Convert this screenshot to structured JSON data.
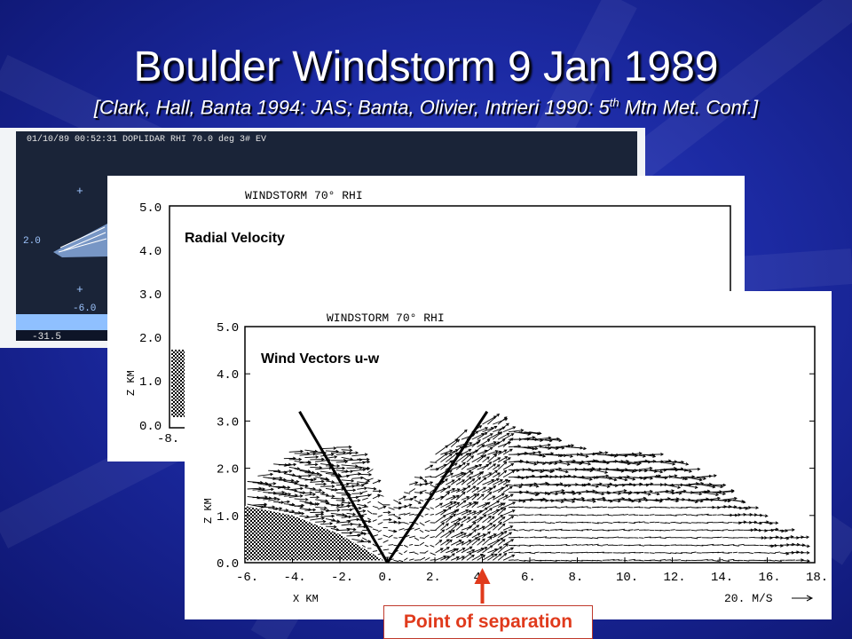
{
  "slide": {
    "title": "Boulder Windstorm 9 Jan 1989",
    "subtitle_main": "[Clark, Hall, Banta 1994: JAS;  Banta, Olivier, Intrieri 1990: 5",
    "subtitle_sup": "th",
    "subtitle_end": " Mtn Met. Conf.]",
    "annotation": "Point of separation",
    "annotation_color": "#e03a1c"
  },
  "panel_doplidar": {
    "header": "01/10/89 00:52:31  DOPLIDAR RHI  70.0 deg  3# EV",
    "label_2": "2.0",
    "label_m6": "-6.0",
    "colorbar_label": "-31.5"
  },
  "panel_radial": {
    "header": "WINDSTORM 70° RHI",
    "label": "Radial Velocity",
    "y_axis_label": "Z KM",
    "y_ticks": [
      "5.0",
      "4.0",
      "3.0",
      "2.0",
      "1.0",
      "0.0"
    ],
    "x_tick_first": "-8."
  },
  "chart_data": {
    "type": "vector-field",
    "title": "WINDSTORM 70° RHI",
    "label": "Wind Vectors  u-w",
    "xlabel": "X KM",
    "ylabel": "Z KM",
    "xlim": [
      -6,
      18
    ],
    "ylim": [
      0,
      5
    ],
    "x_ticks": [
      "-6.",
      "-4.",
      "-2.",
      "0.",
      "2.",
      "4.",
      "6.",
      "8.",
      "10.",
      "12.",
      "14.",
      "16.",
      "18."
    ],
    "y_ticks": [
      "0.0",
      "1.0",
      "2.0",
      "3.0",
      "4.0",
      "5.0"
    ],
    "scale_label": "20. M/S",
    "separation_lines": [
      {
        "x": [
          0.0,
          -3.7
        ],
        "z": [
          0.0,
          3.2
        ]
      },
      {
        "x": [
          0.0,
          4.2
        ],
        "z": [
          0.0,
          3.2
        ]
      }
    ],
    "separation_point_x": 4.0,
    "vector_envelope_top": [
      {
        "x": -6,
        "z": 1.7
      },
      {
        "x": -4,
        "z": 2.4
      },
      {
        "x": -2,
        "z": 2.5
      },
      {
        "x": -1,
        "z": 2.2
      },
      {
        "x": 0,
        "z": 1.2
      },
      {
        "x": 2,
        "z": 2.3
      },
      {
        "x": 4,
        "z": 3.0
      },
      {
        "x": 6,
        "z": 2.8
      },
      {
        "x": 8,
        "z": 2.4
      },
      {
        "x": 10,
        "z": 2.4
      },
      {
        "x": 12,
        "z": 2.2
      },
      {
        "x": 14,
        "z": 1.6
      },
      {
        "x": 16,
        "z": 0.9
      },
      {
        "x": 18,
        "z": 0.4
      }
    ],
    "terrain": [
      {
        "x": -6,
        "z": 1.2
      },
      {
        "x": -4,
        "z": 1.0
      },
      {
        "x": -2,
        "z": 0.6
      },
      {
        "x": -1,
        "z": 0.3
      },
      {
        "x": 0,
        "z": 0.0
      }
    ]
  }
}
